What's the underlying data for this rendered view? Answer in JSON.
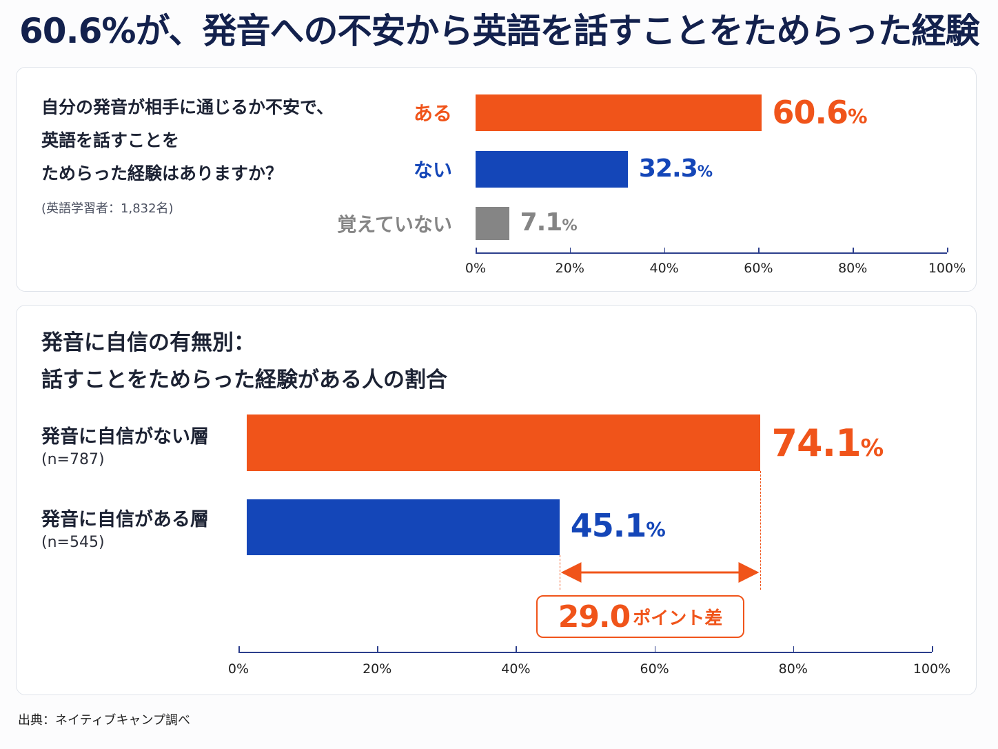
{
  "title": "60.6%が、発音への不安から英語を話すことをためらった経験",
  "source": "出典：ネイティブキャンプ調べ",
  "colors": {
    "orange": "#f0541a",
    "blue": "#1446b8",
    "gray": "#858585",
    "navy": "#13214d"
  },
  "chart_data": [
    {
      "type": "bar",
      "orientation": "horizontal",
      "question_lines": [
        "自分の発音が相手に通じるか不安で、",
        "英語を話すことを",
        "ためらった経験はありますか？"
      ],
      "note": "(英語学習者：1,832名)",
      "categories": [
        "ある",
        "ない",
        "覚えていない"
      ],
      "values": [
        60.6,
        32.3,
        7.1
      ],
      "value_labels": [
        "60.6",
        "32.3",
        "7.1"
      ],
      "unit": "%",
      "colors": [
        "#f0541a",
        "#1446b8",
        "#858585"
      ],
      "xlim": [
        0,
        100
      ],
      "ticks": [
        "0%",
        "20%",
        "40%",
        "60%",
        "80%",
        "100%"
      ],
      "grid": false
    },
    {
      "type": "bar",
      "orientation": "horizontal",
      "title_lines": [
        "発音に自信の有無別：",
        "話すことをためらった経験がある人の割合"
      ],
      "categories": [
        "発音に自信がない層",
        "発音に自信がある層"
      ],
      "sample_sizes": [
        "(n=787)",
        "(n=545)"
      ],
      "values": [
        74.1,
        45.1
      ],
      "value_labels": [
        "74.1",
        "45.1"
      ],
      "unit": "%",
      "colors": [
        "#f0541a",
        "#1446b8"
      ],
      "xlim": [
        0,
        100
      ],
      "ticks": [
        "0%",
        "20%",
        "40%",
        "60%",
        "80%",
        "100%"
      ],
      "difference": {
        "value": "29.0",
        "suffix": "ポイント差"
      },
      "grid": false
    }
  ]
}
